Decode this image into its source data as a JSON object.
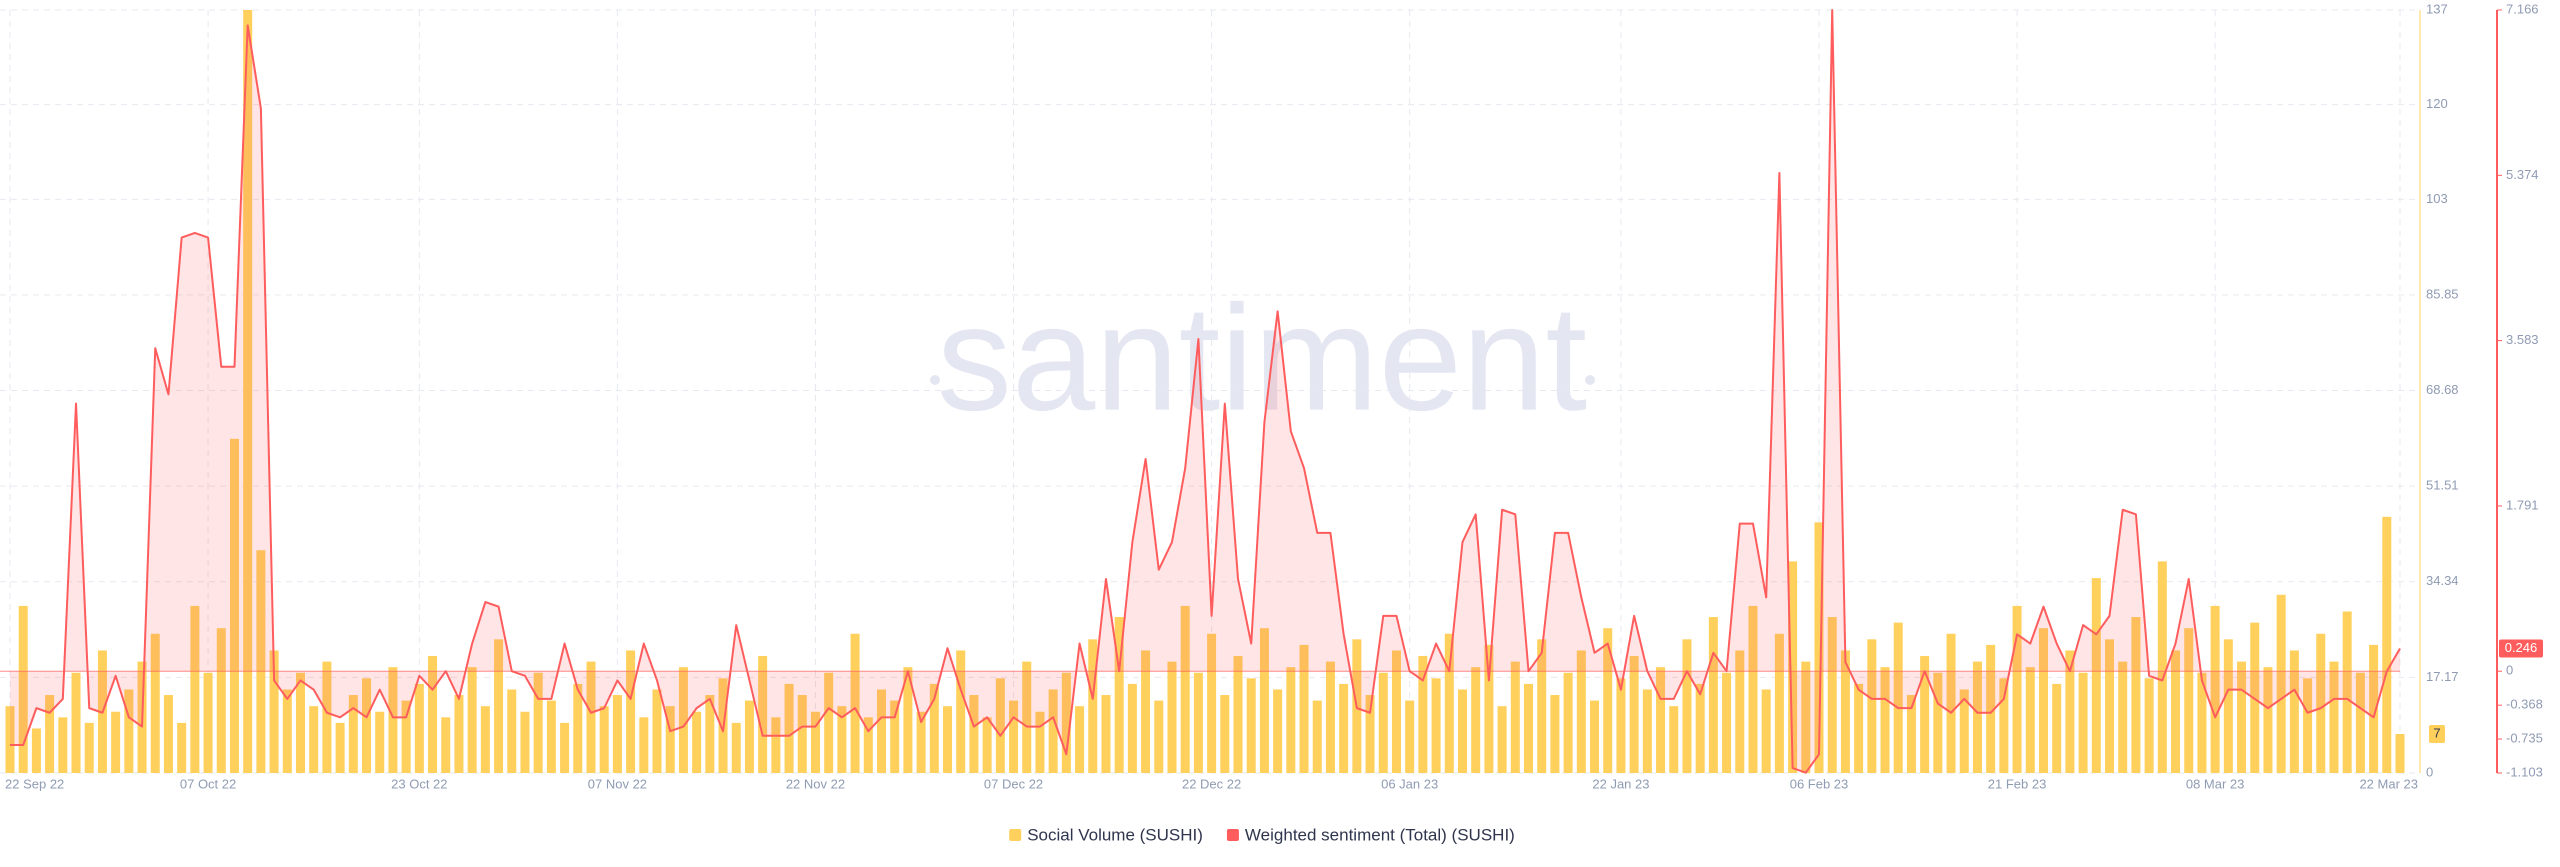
{
  "chart_data": {
    "type": "combo",
    "watermark": "santiment",
    "categories": [
      "22 Sep 22",
      null,
      null,
      null,
      null,
      null,
      null,
      null,
      null,
      null,
      null,
      null,
      null,
      null,
      null,
      "07 Oct 22",
      null,
      null,
      null,
      null,
      null,
      null,
      null,
      null,
      null,
      null,
      null,
      null,
      null,
      null,
      null,
      "23 Oct 22",
      null,
      null,
      null,
      null,
      null,
      null,
      null,
      null,
      null,
      null,
      null,
      null,
      null,
      null,
      "07 Nov 22",
      null,
      null,
      null,
      null,
      null,
      null,
      null,
      null,
      null,
      null,
      null,
      null,
      null,
      null,
      "22 Nov 22",
      null,
      null,
      null,
      null,
      null,
      null,
      null,
      null,
      null,
      null,
      null,
      null,
      null,
      null,
      "07 Dec 22",
      null,
      null,
      null,
      null,
      null,
      null,
      null,
      null,
      null,
      null,
      null,
      null,
      null,
      null,
      "22 Dec 22",
      null,
      null,
      null,
      null,
      null,
      null,
      null,
      null,
      null,
      null,
      null,
      null,
      null,
      null,
      "06 Jan 23",
      null,
      null,
      null,
      null,
      null,
      null,
      null,
      null,
      null,
      null,
      null,
      null,
      null,
      null,
      null,
      "22 Jan 23",
      null,
      null,
      null,
      null,
      null,
      null,
      null,
      null,
      null,
      null,
      null,
      null,
      null,
      null,
      "06 Feb 23",
      null,
      null,
      null,
      null,
      null,
      null,
      null,
      null,
      null,
      null,
      null,
      null,
      null,
      null,
      "21 Feb 23",
      null,
      null,
      null,
      null,
      null,
      null,
      null,
      null,
      null,
      null,
      null,
      null,
      null,
      null,
      "08 Mar 23",
      null,
      null,
      null,
      null,
      null,
      null,
      null,
      null,
      null,
      null,
      null,
      null,
      null,
      "22 Mar 23"
    ],
    "series": [
      {
        "name": "Social Volume (SUSHI)",
        "type": "bar",
        "color": "#ffd15c",
        "values": [
          12,
          30,
          8,
          14,
          10,
          18,
          9,
          22,
          11,
          15,
          20,
          25,
          14,
          9,
          30,
          18,
          26,
          60,
          137,
          40,
          22,
          15,
          18,
          12,
          20,
          9,
          14,
          17,
          11,
          19,
          13,
          16,
          21,
          10,
          14,
          19,
          12,
          24,
          15,
          11,
          18,
          13,
          9,
          16,
          20,
          12,
          14,
          22,
          10,
          15,
          12,
          19,
          11,
          14,
          17,
          9,
          13,
          21,
          10,
          16,
          14,
          11,
          18,
          12,
          25,
          10,
          15,
          13,
          19,
          11,
          16,
          12,
          22,
          14,
          10,
          17,
          13,
          20,
          11,
          15,
          18,
          12,
          24,
          14,
          28,
          16,
          22,
          13,
          20,
          30,
          18,
          25,
          14,
          21,
          17,
          26,
          15,
          19,
          23,
          13,
          20,
          16,
          24,
          14,
          18,
          22,
          13,
          21,
          17,
          25,
          15,
          19,
          23,
          12,
          20,
          16,
          24,
          14,
          18,
          22,
          13,
          26,
          17,
          21,
          15,
          19,
          12,
          24,
          16,
          28,
          18,
          22,
          30,
          15,
          25,
          38,
          20,
          45,
          28,
          22,
          16,
          24,
          19,
          27,
          14,
          21,
          18,
          25,
          15,
          20,
          23,
          17,
          30,
          19,
          26,
          16,
          22,
          18,
          35,
          24,
          20,
          28,
          17,
          38,
          22,
          26,
          18,
          30,
          24,
          20,
          27,
          19,
          32,
          22,
          17,
          25,
          20,
          29,
          18,
          23,
          46,
          7
        ]
      },
      {
        "name": "Weighted sentiment (Total) (SUSHI)",
        "type": "line",
        "axis": "y2",
        "color": "#ff5d5d",
        "values": [
          -0.8,
          -0.8,
          -0.4,
          -0.45,
          -0.3,
          2.9,
          -0.4,
          -0.45,
          -0.05,
          -0.5,
          -0.6,
          3.5,
          3.0,
          4.7,
          4.75,
          4.7,
          3.3,
          3.3,
          7.0,
          6.1,
          -0.1,
          -0.3,
          -0.1,
          -0.2,
          -0.45,
          -0.5,
          -0.4,
          -0.5,
          -0.2,
          -0.5,
          -0.5,
          -0.05,
          -0.2,
          0.0,
          -0.3,
          0.3,
          0.75,
          0.7,
          0.0,
          -0.05,
          -0.3,
          -0.3,
          0.3,
          -0.2,
          -0.45,
          -0.4,
          -0.1,
          -0.3,
          0.3,
          -0.1,
          -0.65,
          -0.6,
          -0.4,
          -0.3,
          -0.65,
          0.5,
          -0.1,
          -0.7,
          -0.7,
          -0.7,
          -0.6,
          -0.6,
          -0.4,
          -0.5,
          -0.4,
          -0.65,
          -0.5,
          -0.5,
          0.0,
          -0.55,
          -0.3,
          0.25,
          -0.2,
          -0.6,
          -0.5,
          -0.7,
          -0.5,
          -0.6,
          -0.6,
          -0.5,
          -0.9,
          0.3,
          -0.3,
          1.0,
          0.0,
          1.4,
          2.3,
          1.1,
          1.4,
          2.2,
          3.6,
          0.6,
          2.9,
          1.0,
          0.3,
          2.7,
          3.9,
          2.6,
          2.2,
          1.5,
          1.5,
          0.4,
          -0.4,
          -0.45,
          0.6,
          0.6,
          0.0,
          -0.1,
          0.3,
          0.0,
          1.4,
          1.7,
          -0.1,
          1.75,
          1.7,
          0.0,
          0.2,
          1.5,
          1.5,
          0.8,
          0.2,
          0.3,
          -0.2,
          0.6,
          0.0,
          -0.3,
          -0.3,
          0.0,
          -0.25,
          0.2,
          0.0,
          1.6,
          1.6,
          0.8,
          5.4,
          -1.05,
          -1.1,
          -0.9,
          7.166,
          0.1,
          -0.2,
          -0.3,
          -0.3,
          -0.4,
          -0.4,
          0.0,
          -0.35,
          -0.45,
          -0.3,
          -0.45,
          -0.45,
          -0.3,
          0.4,
          0.3,
          0.7,
          0.3,
          0.0,
          0.5,
          0.4,
          0.6,
          1.75,
          1.7,
          -0.05,
          -0.1,
          0.3,
          1.0,
          -0.1,
          -0.5,
          -0.2,
          -0.2,
          -0.3,
          -0.4,
          -0.3,
          -0.2,
          -0.45,
          -0.4,
          -0.3,
          -0.3,
          -0.4,
          -0.5,
          0.0,
          0.246
        ]
      }
    ],
    "ylim": [
      0,
      137
    ],
    "yticks": [
      0,
      17.17,
      34.34,
      51.51,
      68.68,
      85.85,
      103,
      120,
      137
    ],
    "y2lim": [
      -1.103,
      7.166
    ],
    "y2ticks": [
      -1.103,
      -0.735,
      -0.368,
      0,
      1.791,
      3.583,
      5.374,
      7.166
    ],
    "grid": true,
    "legend": "bottom"
  }
}
